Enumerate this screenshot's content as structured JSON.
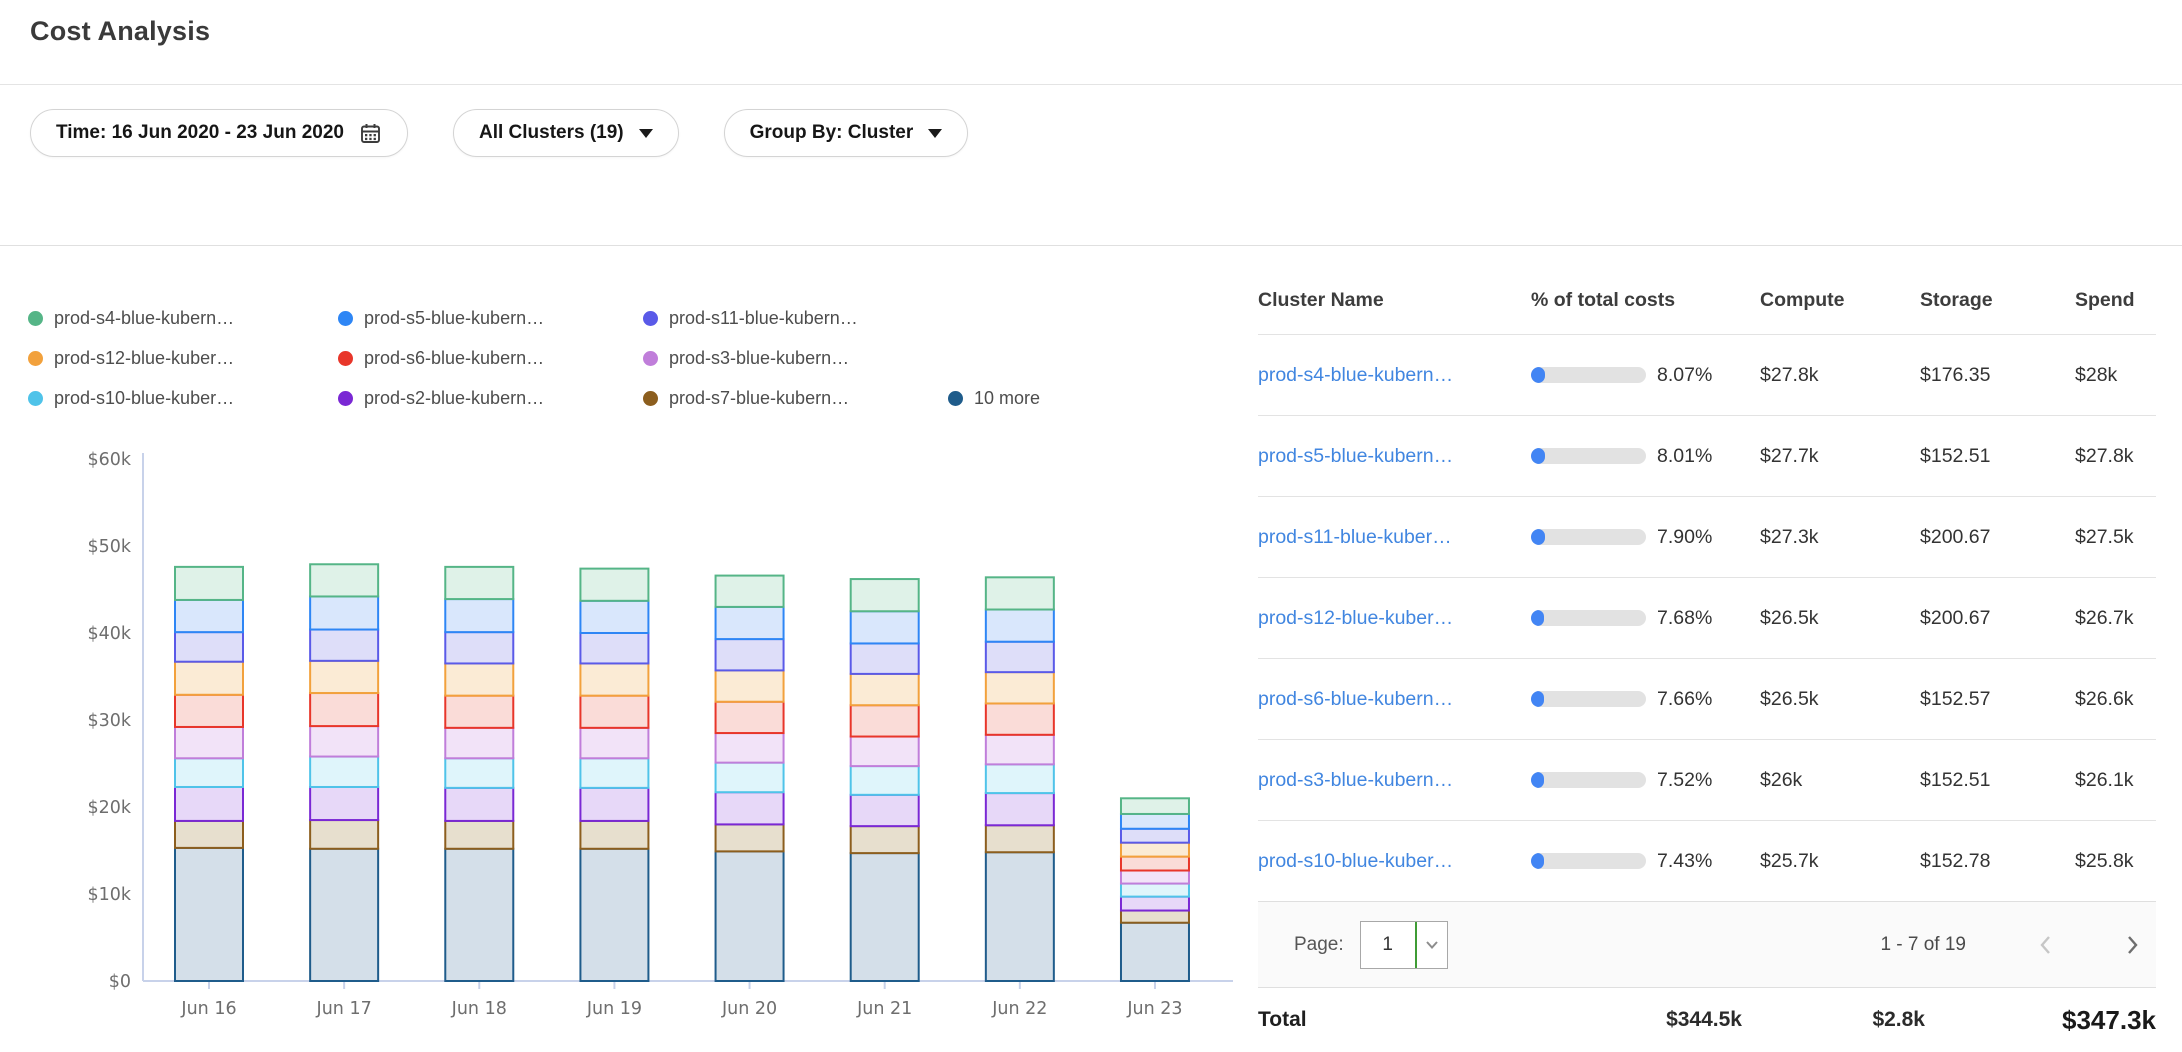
{
  "page": {
    "title": "Cost Analysis"
  },
  "filters": {
    "time": {
      "label": "Time: 16 Jun 2020 - 23 Jun 2020"
    },
    "clusters": {
      "label": "All Clusters (19)"
    },
    "group_by": {
      "label": "Group By: Cluster"
    }
  },
  "icons": {
    "calendar": "calendar-icon",
    "dropdown": "chevron-down-icon",
    "prev": "chevron-left-icon",
    "next": "chevron-right-icon"
  },
  "colors": {
    "link_blue": "#4186e0",
    "progress_fill": "#4285f4",
    "select_divider_green": "#3f9c35",
    "axis": "#c8d2ea",
    "nav_disabled": "#c6c6c6",
    "nav_enabled": "#6e6e6e"
  },
  "legend": {
    "items": [
      {
        "label": "prod-s4-blue-kubern…",
        "color": "#55b587"
      },
      {
        "label": "prod-s5-blue-kubern…",
        "color": "#2e86f5"
      },
      {
        "label": "prod-s11-blue-kubern…",
        "color": "#5a5ae8"
      },
      {
        "label": "prod-s12-blue-kuber…",
        "color": "#f2a13c"
      },
      {
        "label": "prod-s6-blue-kubern…",
        "color": "#e8362a"
      },
      {
        "label": "prod-s3-blue-kubern…",
        "color": "#c07eda"
      },
      {
        "label": "prod-s10-blue-kuber…",
        "color": "#4fc3e9"
      },
      {
        "label": "prod-s2-blue-kubern…",
        "color": "#7a28d4"
      },
      {
        "label": "prod-s7-blue-kubern…",
        "color": "#8c5e1e"
      },
      {
        "label": "10 more",
        "color": "#1f5c8b"
      }
    ]
  },
  "chart_data": {
    "type": "bar",
    "stacked": true,
    "x": [
      "Jun 16",
      "Jun 17",
      "Jun 18",
      "Jun 19",
      "Jun 20",
      "Jun 21",
      "Jun 22",
      "Jun 23"
    ],
    "y_ticks": [
      "$0",
      "$10k",
      "$20k",
      "$30k",
      "$40k",
      "$50k",
      "$60k"
    ],
    "ylim": [
      0,
      60
    ],
    "values_unit": "USD thousands per day",
    "grid": false,
    "legend_position": "top",
    "series": [
      {
        "name": "10 more",
        "color": "#1f5c8b",
        "fill": "#d4dfe9",
        "values": [
          15.3,
          15.2,
          15.2,
          15.2,
          14.9,
          14.7,
          14.8,
          6.7
        ]
      },
      {
        "name": "prod-s7-blue-kubern…",
        "color": "#8c5e1e",
        "fill": "#e7dfce",
        "values": [
          3.1,
          3.3,
          3.2,
          3.2,
          3.1,
          3.1,
          3.1,
          1.4
        ]
      },
      {
        "name": "prod-s2-blue-kubern…",
        "color": "#7a28d4",
        "fill": "#e7d8f8",
        "values": [
          3.9,
          3.8,
          3.8,
          3.8,
          3.7,
          3.6,
          3.7,
          1.6
        ]
      },
      {
        "name": "prod-s10-blue-kuber…",
        "color": "#4fc3e9",
        "fill": "#dff5fb",
        "values": [
          3.3,
          3.5,
          3.4,
          3.4,
          3.4,
          3.3,
          3.3,
          1.5
        ]
      },
      {
        "name": "prod-s3-blue-kubern…",
        "color": "#c07eda",
        "fill": "#f2e3f8",
        "values": [
          3.6,
          3.5,
          3.5,
          3.5,
          3.4,
          3.4,
          3.4,
          1.5
        ]
      },
      {
        "name": "prod-s6-blue-kubern…",
        "color": "#e8362a",
        "fill": "#fadcd8",
        "values": [
          3.7,
          3.8,
          3.7,
          3.7,
          3.6,
          3.6,
          3.6,
          1.6
        ]
      },
      {
        "name": "prod-s12-blue-kuber…",
        "color": "#f2a13c",
        "fill": "#fbebd5",
        "values": [
          3.8,
          3.7,
          3.7,
          3.7,
          3.6,
          3.6,
          3.6,
          1.6
        ]
      },
      {
        "name": "prod-s11-blue-kubern…",
        "color": "#5a5ae8",
        "fill": "#dedef9",
        "values": [
          3.4,
          3.6,
          3.6,
          3.5,
          3.6,
          3.5,
          3.5,
          1.6
        ]
      },
      {
        "name": "prod-s5-blue-kubern…",
        "color": "#2e86f5",
        "fill": "#d9e7fc",
        "values": [
          3.7,
          3.8,
          3.8,
          3.7,
          3.7,
          3.7,
          3.7,
          1.7
        ]
      },
      {
        "name": "prod-s4-blue-kubern…",
        "color": "#55b587",
        "fill": "#dff2e8",
        "values": [
          3.8,
          3.7,
          3.7,
          3.7,
          3.6,
          3.7,
          3.7,
          1.8
        ]
      }
    ]
  },
  "table": {
    "columns": [
      "Cluster Name",
      "% of total costs",
      "Compute",
      "Storage",
      "Spend"
    ],
    "rows": [
      {
        "name": "prod-s4-blue-kubern…",
        "pct_value": 8.07,
        "pct": "8.07%",
        "compute": "$27.8k",
        "storage": "$176.35",
        "spend": "$28k"
      },
      {
        "name": "prod-s5-blue-kubern…",
        "pct_value": 8.01,
        "pct": "8.01%",
        "compute": "$27.7k",
        "storage": "$152.51",
        "spend": "$27.8k"
      },
      {
        "name": "prod-s11-blue-kuber…",
        "pct_value": 7.9,
        "pct": "7.90%",
        "compute": "$27.3k",
        "storage": "$200.67",
        "spend": "$27.5k"
      },
      {
        "name": "prod-s12-blue-kuber…",
        "pct_value": 7.68,
        "pct": "7.68%",
        "compute": "$26.5k",
        "storage": "$200.67",
        "spend": "$26.7k"
      },
      {
        "name": "prod-s6-blue-kubern…",
        "pct_value": 7.66,
        "pct": "7.66%",
        "compute": "$26.5k",
        "storage": "$152.57",
        "spend": "$26.6k"
      },
      {
        "name": "prod-s3-blue-kubern…",
        "pct_value": 7.52,
        "pct": "7.52%",
        "compute": "$26k",
        "storage": "$152.51",
        "spend": "$26.1k"
      },
      {
        "name": "prod-s10-blue-kuber…",
        "pct_value": 7.43,
        "pct": "7.43%",
        "compute": "$25.7k",
        "storage": "$152.78",
        "spend": "$25.8k"
      }
    ],
    "pagination": {
      "label": "Page:",
      "page": "1",
      "range": "1 - 7 of 19"
    },
    "total": {
      "label": "Total",
      "compute": "$344.5k",
      "storage": "$2.8k",
      "spend": "$347.3k"
    }
  }
}
